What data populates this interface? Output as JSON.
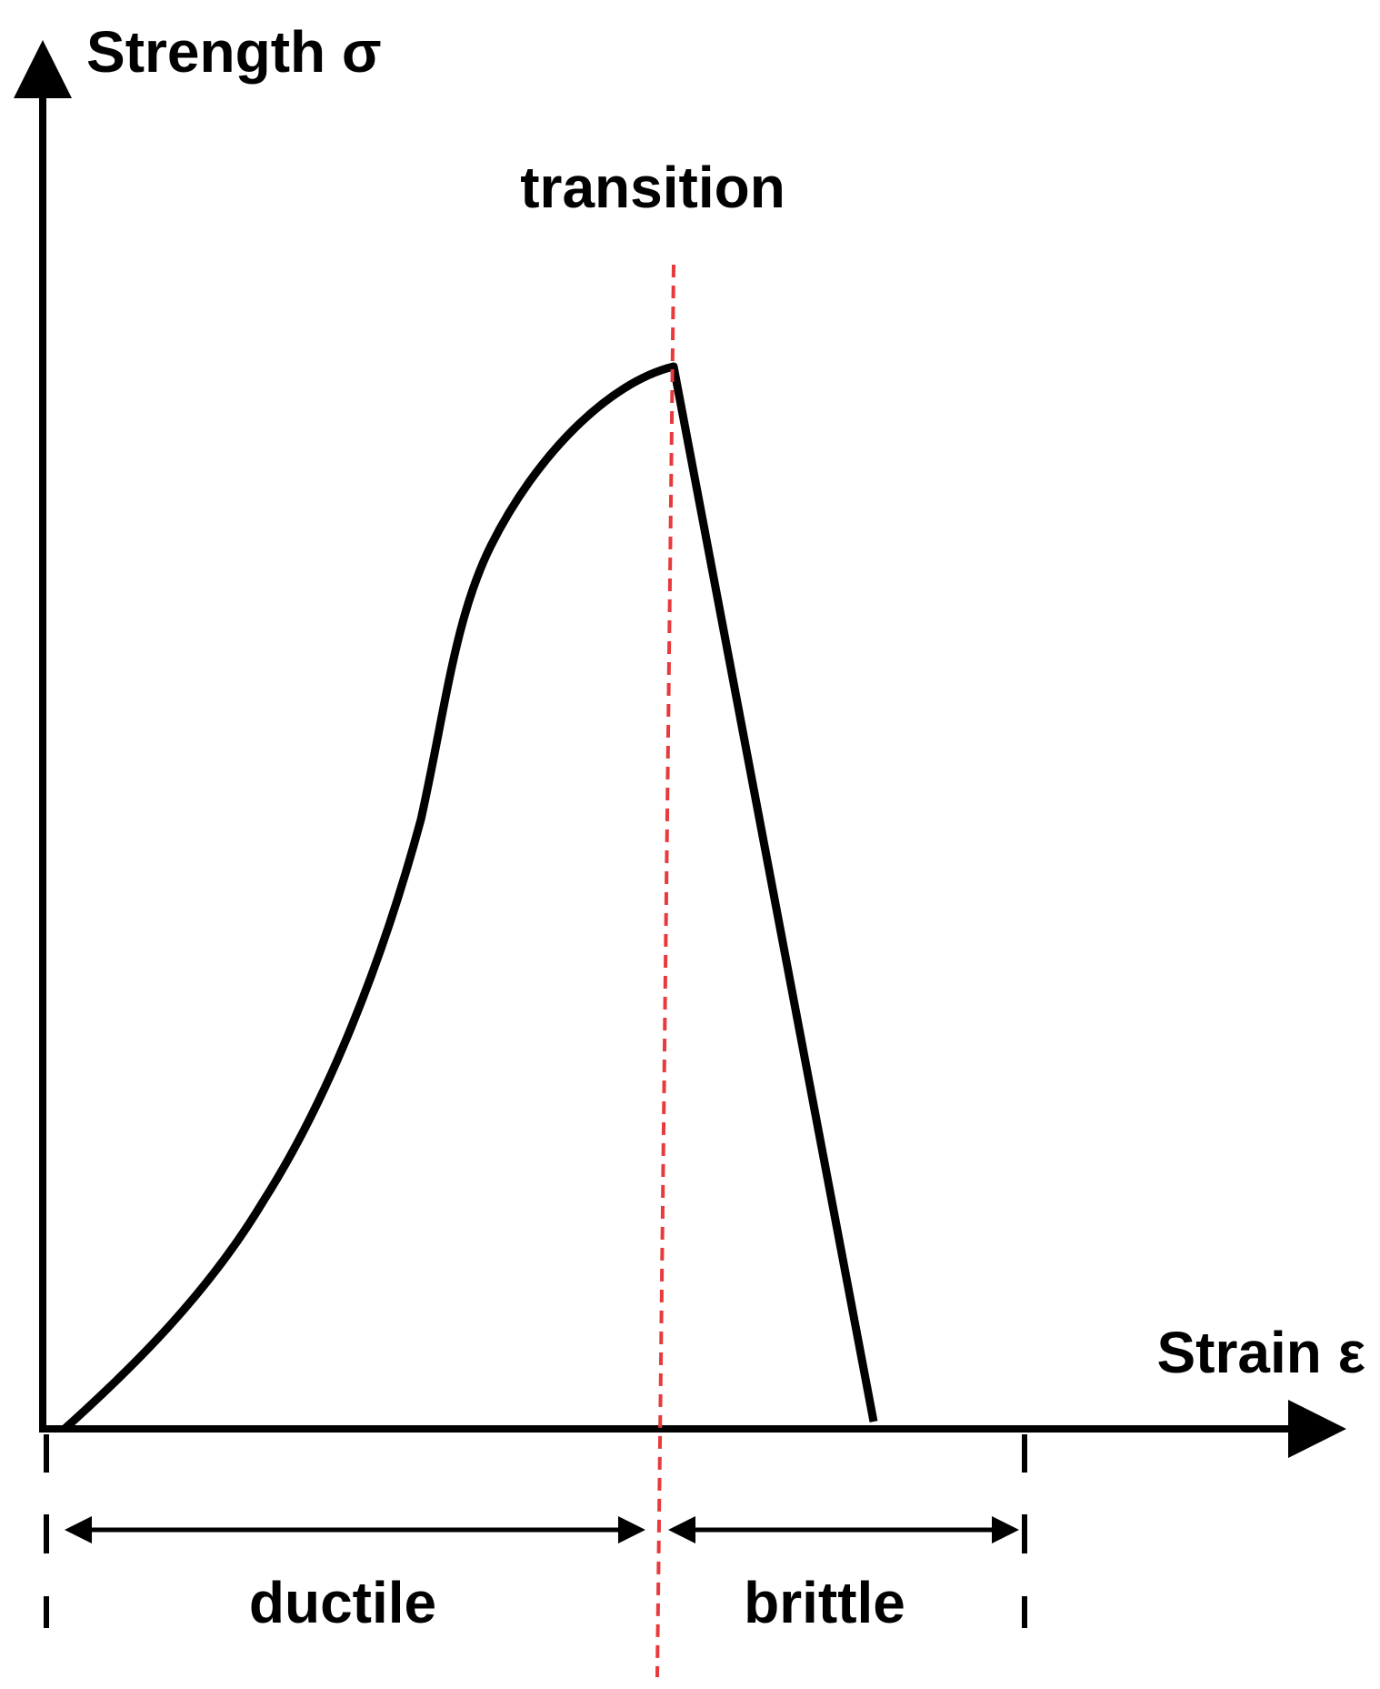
{
  "labels": {
    "y_axis": "Strength σ",
    "x_axis": "Strain ε",
    "transition": "transition",
    "ductile": "ductile",
    "brittle": "brittle"
  }
}
